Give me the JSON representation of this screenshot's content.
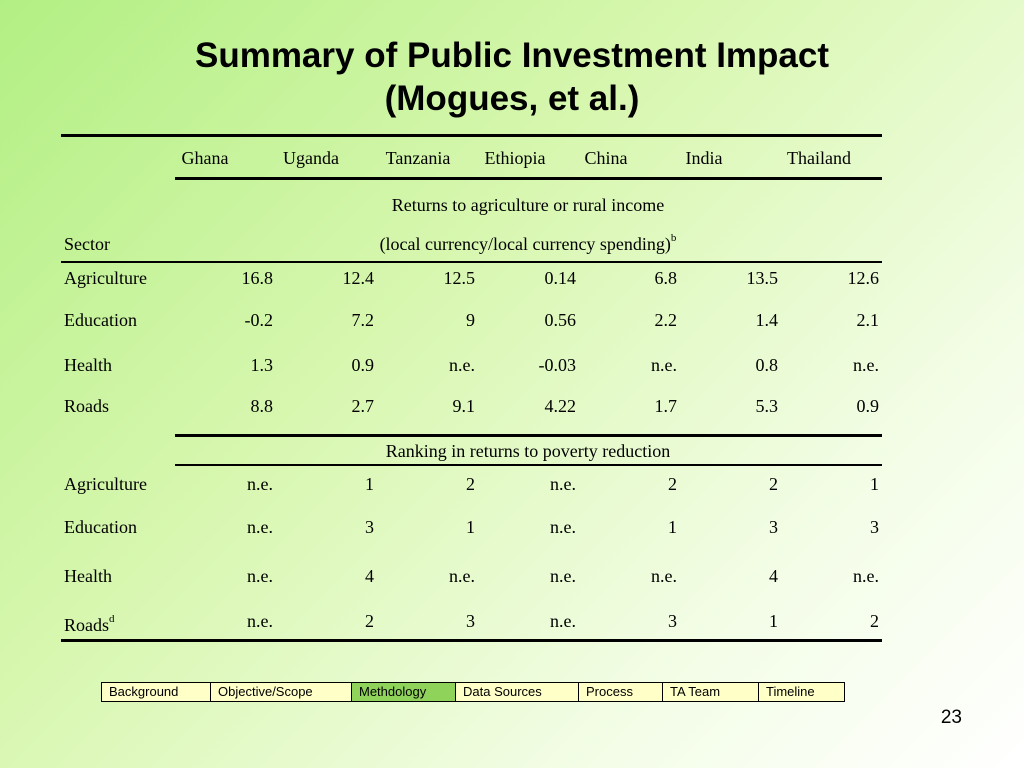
{
  "title": {
    "line1": "Summary of Public Investment Impact",
    "line2": "(Mogues, et al.)"
  },
  "table": {
    "countries": [
      "Ghana",
      "Uganda",
      "Tanzania",
      "Ethiopia",
      "China",
      "India",
      "Thailand"
    ],
    "section1": {
      "header_line1": "Returns to agriculture or rural income",
      "header_line2": "(local currency/local currency spending)",
      "header_sup": "b",
      "sector_label": "Sector",
      "rows": [
        {
          "sector": "Agriculture",
          "values": [
            "16.8",
            "12.4",
            "12.5",
            "0.14",
            "6.8",
            "13.5",
            "12.6"
          ]
        },
        {
          "sector": "Education",
          "values": [
            "-0.2",
            "7.2",
            "9",
            "0.56",
            "2.2",
            "1.4",
            "2.1"
          ]
        },
        {
          "sector": "Health",
          "values": [
            "1.3",
            "0.9",
            "n.e.",
            "-0.03",
            "n.e.",
            "0.8",
            "n.e."
          ]
        },
        {
          "sector": "Roads",
          "values": [
            "8.8",
            "2.7",
            "9.1",
            "4.22",
            "1.7",
            "5.3",
            "0.9"
          ]
        }
      ]
    },
    "section2": {
      "header": "Ranking in returns to poverty reduction",
      "rows": [
        {
          "sector": "Agriculture",
          "values": [
            "n.e.",
            "1",
            "2",
            "n.e.",
            "2",
            "2",
            "1"
          ]
        },
        {
          "sector": "Education",
          "values": [
            "n.e.",
            "3",
            "1",
            "n.e.",
            "1",
            "3",
            "3"
          ]
        },
        {
          "sector": "Health",
          "values": [
            "n.e.",
            "4",
            "n.e.",
            "n.e.",
            "n.e.",
            "4",
            "n.e."
          ]
        },
        {
          "sector": "Roads",
          "sector_sup": "d",
          "values": [
            "n.e.",
            "2",
            "3",
            "n.e.",
            "3",
            "1",
            "2"
          ]
        }
      ]
    }
  },
  "nav": {
    "items": [
      "Background",
      "Objective/Scope",
      "Methdology",
      "Data Sources",
      "Process",
      "TA Team",
      "Timeline"
    ],
    "active_index": 2,
    "colors": {
      "bar": "#ffffc8",
      "active": "#8fd35a"
    }
  },
  "page_number": "23"
}
